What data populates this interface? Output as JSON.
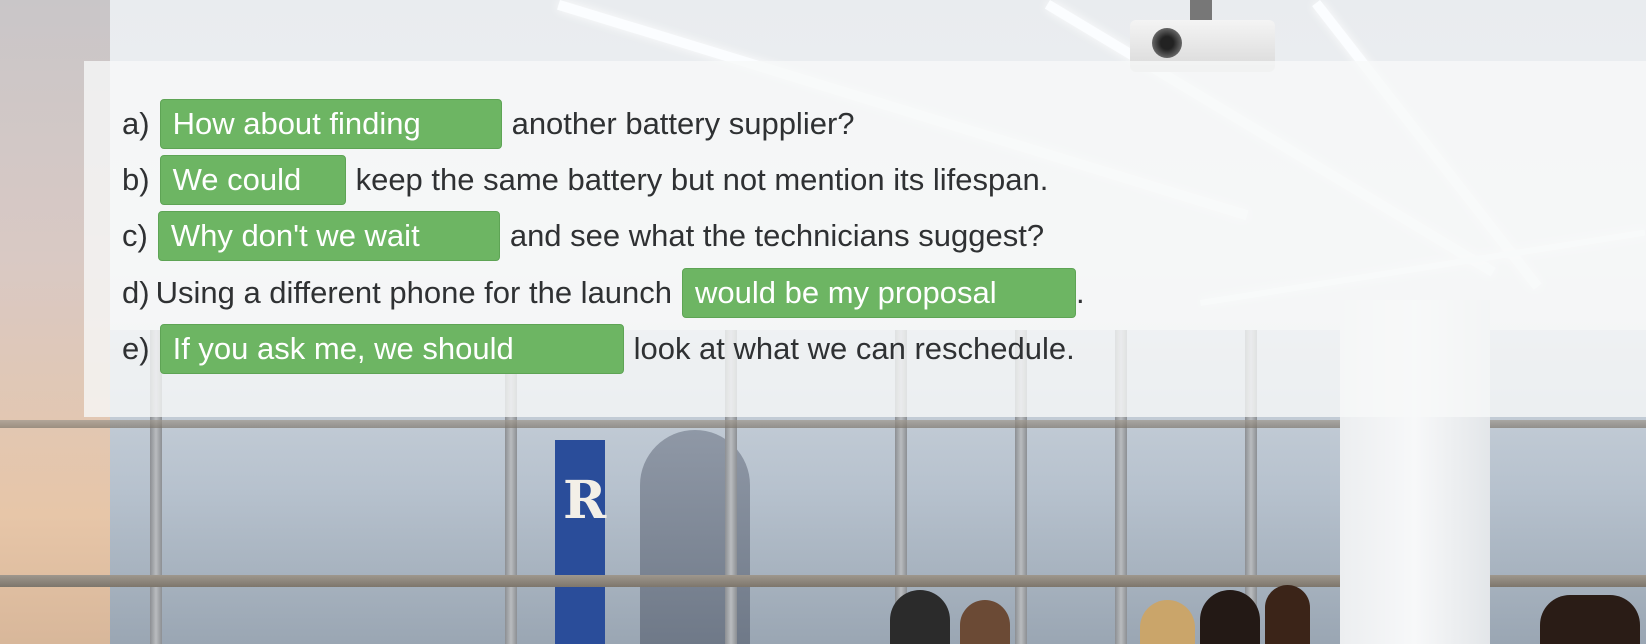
{
  "exercise": {
    "items": [
      {
        "label": "a)",
        "answer": "How about finding",
        "text_after": "another battery supplier?"
      },
      {
        "label": "b)",
        "answer": "We could",
        "text_after": "keep the same battery but not mention its lifespan."
      },
      {
        "label": "c)",
        "answer": "Why don't we wait",
        "text_after": "and see what the technicians suggest?"
      },
      {
        "label": "d)",
        "text_before": "Using a different phone for the launch",
        "answer": "would be my proposal",
        "text_after": "."
      },
      {
        "label": "e)",
        "answer": "If you ask me, we should",
        "text_after": "look at what we can reschedule."
      }
    ]
  },
  "background": {
    "sign_letter": "R"
  },
  "colors": {
    "answer_fill": "#6db563",
    "answer_text": "#ffffff",
    "body_text": "#2f3133"
  }
}
